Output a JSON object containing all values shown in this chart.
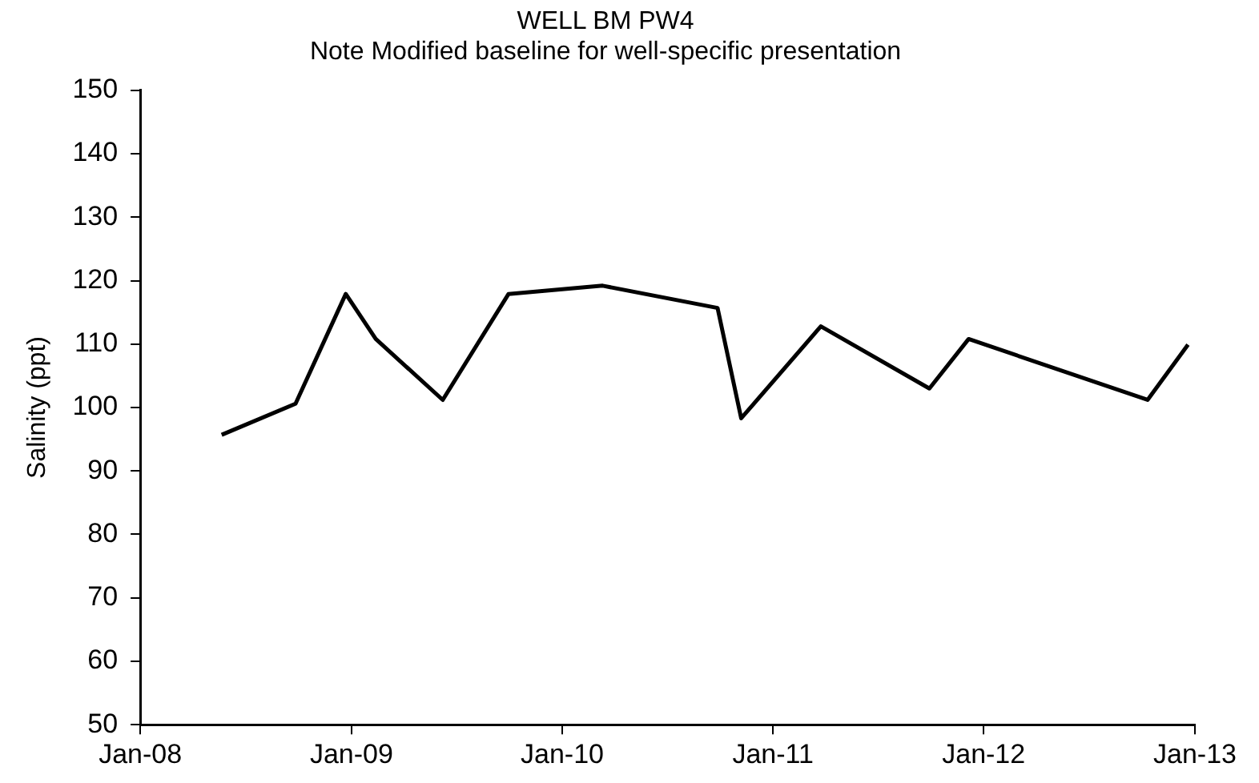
{
  "chart_data": {
    "type": "line",
    "title": "WELL BM PW4",
    "subtitle": "Note Modified baseline for well-specific presentation",
    "ylabel": "Salinity (ppt)",
    "x": [
      "2008-05-21",
      "2008-09-26",
      "2008-12-22",
      "2009-02-12",
      "2009-06-08",
      "2009-09-30",
      "2010-03-12",
      "2010-09-27",
      "2010-11-07",
      "2011-03-25",
      "2011-09-29",
      "2011-12-06",
      "2012-10-11",
      "2012-12-20"
    ],
    "series": [
      {
        "color": "#000000",
        "values": [
          95.7,
          100.6,
          117.9,
          110.8,
          101.2,
          117.9,
          119.2,
          115.7,
          98.3,
          112.8,
          103,
          110.8,
          101.2,
          109.9
        ]
      }
    ],
    "xlim": [
      "2008-01-01",
      "2013-01-01"
    ],
    "xticks": [
      {
        "value": "2008-01-01",
        "label": "Jan-08"
      },
      {
        "value": "2009-01-01",
        "label": "Jan-09"
      },
      {
        "value": "2010-01-01",
        "label": "Jan-10"
      },
      {
        "value": "2011-01-01",
        "label": "Jan-11"
      },
      {
        "value": "2012-01-01",
        "label": "Jan-12"
      },
      {
        "value": "2013-01-01",
        "label": "Jan-13"
      }
    ],
    "ylim": [
      50,
      150
    ],
    "yticks": [
      50,
      60,
      70,
      80,
      90,
      100,
      110,
      120,
      130,
      140,
      150
    ],
    "grid": false,
    "legend": false,
    "marker": "none",
    "line_style": "solid"
  }
}
